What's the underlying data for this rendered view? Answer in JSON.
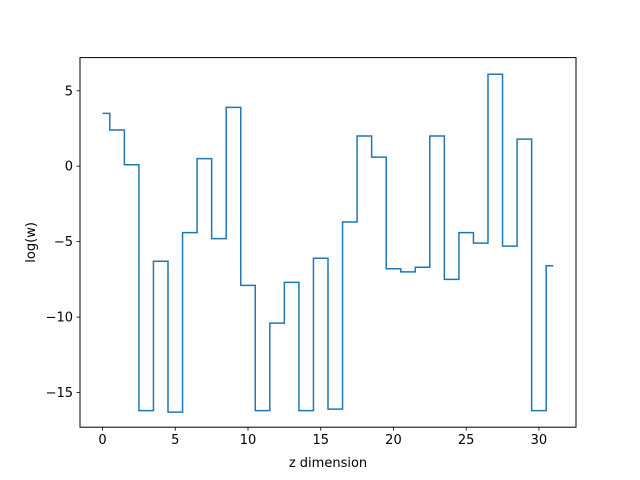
{
  "chart_data": {
    "type": "line",
    "drawstyle": "steps-mid",
    "title": "",
    "xlabel": "z dimension",
    "ylabel": "log(w)",
    "xlim": [
      -1.55,
      32.55
    ],
    "ylim": [
      -17.3,
      7.2
    ],
    "xticks": [
      0,
      5,
      10,
      15,
      20,
      25,
      30
    ],
    "yticks": [
      5,
      0,
      -5,
      -10,
      -15
    ],
    "ytick_labels": [
      "5",
      "0",
      "−5",
      "−10",
      "−15"
    ],
    "grid": false,
    "legend": "none",
    "series": [
      {
        "color": "#1f77b4",
        "x": [
          0,
          1,
          2,
          3,
          4,
          5,
          6,
          7,
          8,
          9,
          10,
          11,
          12,
          13,
          14,
          15,
          16,
          17,
          18,
          19,
          20,
          21,
          22,
          23,
          24,
          25,
          26,
          27,
          28,
          29,
          30,
          31
        ],
        "values": [
          3.5,
          2.4,
          0.1,
          -16.2,
          -6.3,
          -16.3,
          -4.4,
          0.5,
          -4.8,
          3.9,
          -7.9,
          -16.2,
          -10.4,
          -7.7,
          -16.2,
          -6.1,
          -16.1,
          -3.7,
          2.0,
          0.6,
          -6.8,
          -7.0,
          -6.7,
          2.0,
          -7.5,
          -4.4,
          -5.1,
          6.1,
          -5.3,
          1.8,
          -16.2,
          -6.6
        ]
      }
    ]
  }
}
